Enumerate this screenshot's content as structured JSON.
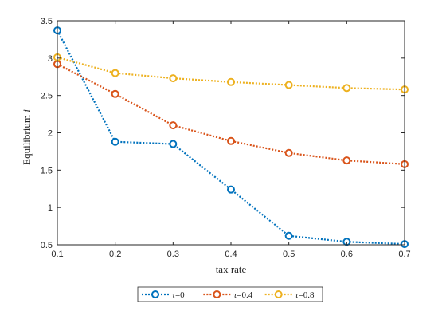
{
  "chart_data": {
    "type": "line",
    "title": "",
    "xlabel": "tax rate",
    "ylabel": "Equilibrium i",
    "ylabel_parts": [
      "Equilibrium ",
      "i"
    ],
    "xlim": [
      0.1,
      0.7
    ],
    "ylim": [
      0.5,
      3.5
    ],
    "xticks": [
      "0.1",
      "0.2",
      "0.3",
      "0.4",
      "0.5",
      "0.6",
      "0.7"
    ],
    "yticks": [
      "0.5",
      "1",
      "1.5",
      "2",
      "2.5",
      "3",
      "3.5"
    ],
    "x": [
      0.1,
      0.2,
      0.3,
      0.4,
      0.5,
      0.6,
      0.7
    ],
    "grid": false,
    "legend_position": "bottom-outside",
    "series": [
      {
        "name": "τ=0",
        "name_parts": [
          "τ",
          "=0"
        ],
        "color": "#0072BD",
        "values": [
          3.37,
          1.88,
          1.85,
          1.24,
          0.62,
          0.54,
          0.51
        ]
      },
      {
        "name": "τ=0.4",
        "name_parts": [
          "τ",
          "=0.4"
        ],
        "color": "#D95319",
        "values": [
          2.92,
          2.52,
          2.1,
          1.89,
          1.73,
          1.63,
          1.58
        ]
      },
      {
        "name": "τ=0.8",
        "name_parts": [
          "τ",
          "=0.8"
        ],
        "color": "#EDB120",
        "values": [
          3.01,
          2.8,
          2.73,
          2.68,
          2.64,
          2.6,
          2.58
        ]
      }
    ]
  }
}
